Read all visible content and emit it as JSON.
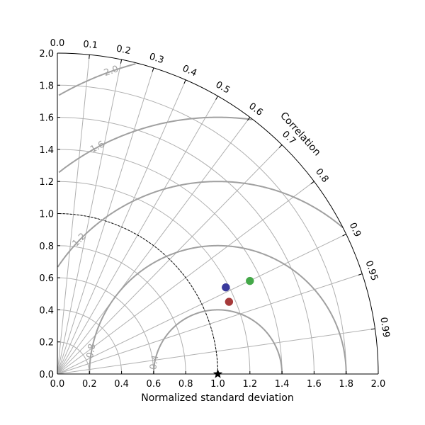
{
  "chart_data": {
    "type": "scatter",
    "subtype": "taylor-diagram",
    "title": "",
    "xlabel": "Normalized standard deviation",
    "ylabel": "",
    "correlation_label": "Correlation",
    "xlim": [
      0,
      2
    ],
    "ylim": [
      0,
      2
    ],
    "x_ticks": [
      "0.0",
      "0.2",
      "0.4",
      "0.6",
      "0.8",
      "1.0",
      "1.2",
      "1.4",
      "1.6",
      "1.8",
      "2.0"
    ],
    "y_ticks": [
      "0.0",
      "0.2",
      "0.4",
      "0.6",
      "0.8",
      "1.0",
      "1.2",
      "1.4",
      "1.6",
      "1.8",
      "2.0"
    ],
    "correlation_ticks": [
      {
        "value": 0.0,
        "label": "0.0"
      },
      {
        "value": 0.1,
        "label": "0.1"
      },
      {
        "value": 0.2,
        "label": "0.2"
      },
      {
        "value": 0.3,
        "label": "0.3"
      },
      {
        "value": 0.4,
        "label": "0.4"
      },
      {
        "value": 0.5,
        "label": "0.5"
      },
      {
        "value": 0.6,
        "label": "0.6"
      },
      {
        "value": 0.7,
        "label": "0.7"
      },
      {
        "value": 0.8,
        "label": "0.8"
      },
      {
        "value": 0.9,
        "label": "0.9"
      },
      {
        "value": 0.95,
        "label": "0.95"
      },
      {
        "value": 0.99,
        "label": "0.99"
      }
    ],
    "std_grid": [
      0.2,
      0.4,
      0.6,
      0.8,
      1.0,
      1.2,
      1.4,
      1.6,
      1.8,
      2.0
    ],
    "rms_contours": [
      {
        "value": 0.4,
        "label": "0.4"
      },
      {
        "value": 0.8,
        "label": "0.8"
      },
      {
        "value": 1.2,
        "label": "1.2"
      },
      {
        "value": 1.6,
        "label": "1.6"
      },
      {
        "value": 2.0,
        "label": "2.0"
      }
    ],
    "reference": {
      "std": 1.0,
      "marker": "star"
    },
    "grid": true,
    "series": [
      {
        "x": 1.05,
        "y": 0.54,
        "color": "#3a3a9c"
      },
      {
        "x": 1.2,
        "y": 0.58,
        "color": "#44a848"
      },
      {
        "x": 1.07,
        "y": 0.45,
        "color": "#a63a3a"
      }
    ]
  }
}
